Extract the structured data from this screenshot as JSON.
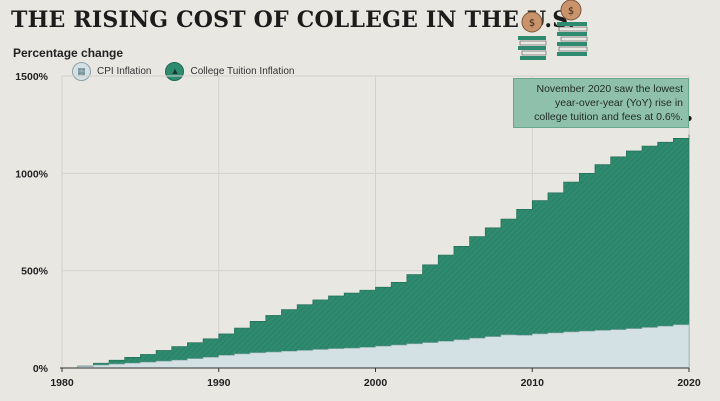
{
  "header": {
    "title": "THE RISING COST OF COLLEGE IN THE U.S.",
    "y_axis_label": "Percentage change"
  },
  "legend": {
    "cpi_label": "CPI Inflation",
    "tuition_label": "College Tuition Inflation",
    "cpi_icon": "chart-icon",
    "tuition_icon": "graduate-icon"
  },
  "annotation": {
    "text": "November 2020 saw the lowest year-over-year (YoY) rise in college tuition and fees at 0.6%."
  },
  "colors": {
    "background": "#e9e7e2",
    "tuition_fill": "#2f8b6f",
    "cpi_fill": "#d3e1e4",
    "callout_fill": "#8fc0ac",
    "coin": "#c9936b"
  },
  "chart_data": {
    "type": "area",
    "title": "THE RISING COST OF COLLEGE IN THE U.S.",
    "ylabel": "Percentage change",
    "xlabel": "",
    "xlim": [
      1980,
      2020
    ],
    "ylim": [
      0,
      1500
    ],
    "x_ticks": [
      1980,
      1990,
      2000,
      2010,
      2020
    ],
    "y_ticks": [
      0,
      500,
      1000,
      1500
    ],
    "y_tick_labels": [
      "0%",
      "500%",
      "1000%",
      "1500%"
    ],
    "step": true,
    "x": [
      1980,
      1981,
      1982,
      1983,
      1984,
      1985,
      1986,
      1987,
      1988,
      1989,
      1990,
      1991,
      1992,
      1993,
      1994,
      1995,
      1996,
      1997,
      1998,
      1999,
      2000,
      2001,
      2002,
      2003,
      2004,
      2005,
      2006,
      2007,
      2008,
      2009,
      2010,
      2011,
      2012,
      2013,
      2014,
      2015,
      2016,
      2017,
      2018,
      2019,
      2020
    ],
    "series": [
      {
        "name": "College Tuition Inflation",
        "values": [
          0,
          10,
          25,
          40,
          55,
          70,
          90,
          110,
          130,
          150,
          175,
          205,
          240,
          270,
          300,
          325,
          350,
          370,
          385,
          400,
          415,
          440,
          480,
          530,
          580,
          625,
          675,
          720,
          765,
          815,
          860,
          900,
          955,
          1000,
          1045,
          1085,
          1115,
          1140,
          1160,
          1180,
          1200
        ]
      },
      {
        "name": "CPI Inflation",
        "values": [
          0,
          8,
          15,
          20,
          25,
          30,
          35,
          40,
          48,
          55,
          65,
          72,
          78,
          82,
          86,
          90,
          95,
          99,
          102,
          106,
          112,
          118,
          124,
          130,
          137,
          145,
          153,
          161,
          170,
          168,
          175,
          180,
          185,
          189,
          193,
          197,
          202,
          208,
          215,
          222,
          230
        ]
      }
    ],
    "annotation": "November 2020 saw the lowest year-over-year (YoY) rise in college tuition and fees at 0.6%."
  }
}
